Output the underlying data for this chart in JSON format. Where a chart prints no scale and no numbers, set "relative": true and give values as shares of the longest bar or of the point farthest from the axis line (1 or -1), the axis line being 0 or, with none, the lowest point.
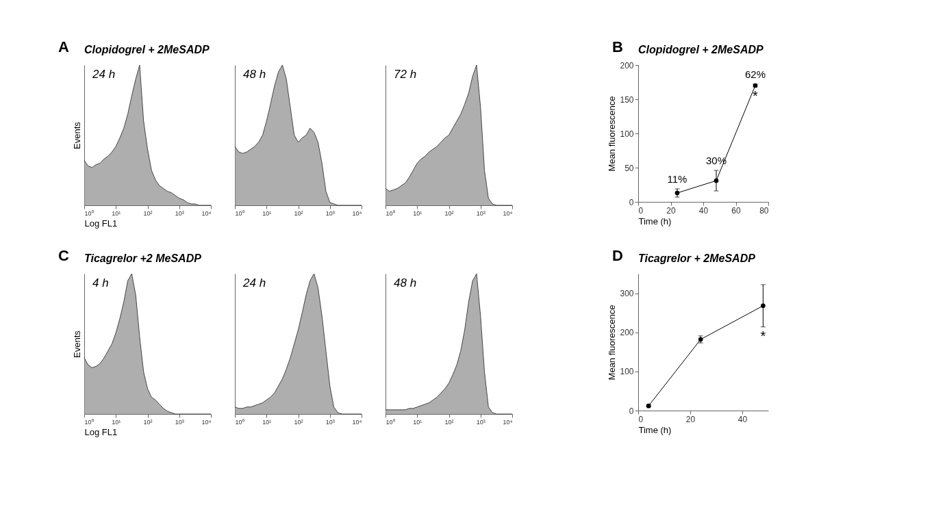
{
  "chart_data": [
    {
      "type": "area",
      "title": "24 h",
      "annotations": [
        "A",
        "Clopidogrel + 2MeSADP"
      ],
      "xlabel": "Log FL1",
      "ylabel": "Events",
      "relative": true,
      "log": "x",
      "xlim": [
        1,
        10000
      ],
      "xticks": [
        {
          "value": 1,
          "label": "10⁰"
        },
        {
          "value": 10,
          "label": "10¹"
        },
        {
          "value": 100,
          "label": "10²"
        },
        {
          "value": 1000,
          "label": "10³"
        },
        {
          "value": 10000,
          "label": "10⁴"
        }
      ],
      "x": [
        1,
        1.33,
        1.78,
        2.37,
        3.16,
        4.22,
        5.62,
        7.5,
        10,
        13.3,
        17.8,
        23.7,
        31.6,
        42.2,
        56.2,
        75,
        100,
        133,
        178,
        237,
        316,
        422,
        562,
        750,
        1000,
        1333,
        1778,
        2371,
        3162,
        4217,
        5623,
        7499,
        10000
      ],
      "series": [
        {
          "color": "#8c8c8c",
          "values": [
            0.32,
            0.28,
            0.27,
            0.29,
            0.3,
            0.33,
            0.35,
            0.38,
            0.42,
            0.48,
            0.55,
            0.65,
            0.78,
            0.9,
            1,
            0.6,
            0.4,
            0.25,
            0.18,
            0.14,
            0.12,
            0.1,
            0.09,
            0.07,
            0.05,
            0.04,
            0.02,
            0.01,
            0.01,
            0,
            0,
            0,
            0
          ]
        }
      ]
    },
    {
      "type": "area",
      "title": "48 h",
      "relative": true,
      "log": "x",
      "xlim": [
        1,
        10000
      ],
      "xticks": [
        {
          "value": 1,
          "label": "10⁰"
        },
        {
          "value": 10,
          "label": "10¹"
        },
        {
          "value": 100,
          "label": "10²"
        },
        {
          "value": 1000,
          "label": "10³"
        },
        {
          "value": 10000,
          "label": "10⁴"
        }
      ],
      "x": [
        1,
        1.33,
        1.78,
        2.37,
        3.16,
        4.22,
        5.62,
        7.5,
        10,
        13.3,
        17.8,
        23.7,
        31.6,
        42.2,
        56.2,
        75,
        100,
        133,
        178,
        237,
        316,
        422,
        562,
        750,
        1000,
        1333,
        1778,
        2371,
        3162,
        4217,
        5623,
        7499,
        10000
      ],
      "series": [
        {
          "color": "#8c8c8c",
          "values": [
            0.42,
            0.38,
            0.37,
            0.38,
            0.4,
            0.42,
            0.45,
            0.5,
            0.6,
            0.72,
            0.85,
            0.95,
            1,
            0.9,
            0.7,
            0.5,
            0.45,
            0.48,
            0.5,
            0.55,
            0.52,
            0.45,
            0.3,
            0.1,
            0.02,
            0.01,
            0,
            0,
            0,
            0,
            0,
            0,
            0
          ]
        }
      ]
    },
    {
      "type": "area",
      "title": "72 h",
      "relative": true,
      "log": "x",
      "xlim": [
        1,
        10000
      ],
      "xticks": [
        {
          "value": 1,
          "label": "10⁰"
        },
        {
          "value": 10,
          "label": "10¹"
        },
        {
          "value": 100,
          "label": "10²"
        },
        {
          "value": 1000,
          "label": "10³"
        },
        {
          "value": 10000,
          "label": "10⁴"
        }
      ],
      "x": [
        1,
        1.33,
        1.78,
        2.37,
        3.16,
        4.22,
        5.62,
        7.5,
        10,
        13.3,
        17.8,
        23.7,
        31.6,
        42.2,
        56.2,
        75,
        100,
        133,
        178,
        237,
        316,
        422,
        562,
        750,
        1000,
        1333,
        1778,
        2371,
        3162,
        4217,
        5623,
        7499,
        10000
      ],
      "series": [
        {
          "color": "#8c8c8c",
          "values": [
            0.12,
            0.1,
            0.11,
            0.12,
            0.14,
            0.16,
            0.2,
            0.25,
            0.3,
            0.33,
            0.35,
            0.38,
            0.4,
            0.42,
            0.45,
            0.48,
            0.5,
            0.55,
            0.6,
            0.65,
            0.72,
            0.8,
            0.92,
            1,
            0.7,
            0.25,
            0.05,
            0.01,
            0,
            0,
            0,
            0,
            0
          ]
        }
      ]
    },
    {
      "type": "line",
      "title": "Clopidogrel + 2MeSADP",
      "xlabel": "Time (h)",
      "ylabel": "Mean fluorescence",
      "x": [
        24,
        48,
        72
      ],
      "xlim": [
        0,
        80
      ],
      "xticks": [
        0,
        20,
        40,
        60,
        80
      ],
      "ylim": [
        0,
        200
      ],
      "yticks": [
        0,
        50,
        100,
        150,
        200
      ],
      "marker": "circle",
      "series": [
        {
          "color": "#000000",
          "values": [
            13,
            31,
            170
          ],
          "errors": [
            6,
            15,
            2
          ]
        }
      ],
      "annotations": [
        "B",
        "*",
        {
          "text": "11%",
          "x": 24,
          "y": 13
        },
        {
          "text": "30%",
          "x": 48,
          "y": 31
        },
        {
          "text": "62%",
          "x": 72,
          "y": 170
        }
      ]
    },
    {
      "type": "area",
      "title": "4 h",
      "annotations": [
        "C",
        "Ticagrelor +2 MeSADP"
      ],
      "xlabel": "Log FL1",
      "ylabel": "Events",
      "relative": true,
      "log": "x",
      "xlim": [
        1,
        10000
      ],
      "xticks": [
        {
          "value": 1,
          "label": "10⁰"
        },
        {
          "value": 10,
          "label": "10¹"
        },
        {
          "value": 100,
          "label": "10²"
        },
        {
          "value": 1000,
          "label": "10³"
        },
        {
          "value": 10000,
          "label": "10⁴"
        }
      ],
      "x": [
        1,
        1.33,
        1.78,
        2.37,
        3.16,
        4.22,
        5.62,
        7.5,
        10,
        13.3,
        17.8,
        23.7,
        31.6,
        42.2,
        56.2,
        75,
        100,
        133,
        178,
        237,
        316,
        422,
        562,
        750,
        1000,
        1333,
        1778,
        2371,
        3162,
        4217,
        5623,
        7499,
        10000
      ],
      "series": [
        {
          "color": "#8c8c8c",
          "values": [
            0.4,
            0.35,
            0.33,
            0.34,
            0.36,
            0.4,
            0.45,
            0.5,
            0.58,
            0.68,
            0.8,
            0.95,
            1,
            0.85,
            0.55,
            0.3,
            0.18,
            0.12,
            0.1,
            0.07,
            0.04,
            0.02,
            0.01,
            0,
            0,
            0,
            0,
            0,
            0,
            0,
            0,
            0,
            0
          ]
        }
      ]
    },
    {
      "type": "area",
      "title": "24 h",
      "relative": true,
      "log": "x",
      "xlim": [
        1,
        10000
      ],
      "xticks": [
        {
          "value": 1,
          "label": "10⁰"
        },
        {
          "value": 10,
          "label": "10¹"
        },
        {
          "value": 100,
          "label": "10²"
        },
        {
          "value": 1000,
          "label": "10³"
        },
        {
          "value": 10000,
          "label": "10⁴"
        }
      ],
      "x": [
        1,
        1.33,
        1.78,
        2.37,
        3.16,
        4.22,
        5.62,
        7.5,
        10,
        13.3,
        17.8,
        23.7,
        31.6,
        42.2,
        56.2,
        75,
        100,
        133,
        178,
        237,
        316,
        422,
        562,
        750,
        1000,
        1333,
        1778,
        2371,
        3162,
        4217,
        5623,
        7499,
        10000
      ],
      "series": [
        {
          "color": "#8c8c8c",
          "values": [
            0.05,
            0.04,
            0.04,
            0.05,
            0.05,
            0.06,
            0.07,
            0.08,
            0.1,
            0.12,
            0.15,
            0.2,
            0.25,
            0.32,
            0.4,
            0.5,
            0.6,
            0.72,
            0.85,
            0.95,
            1,
            0.9,
            0.7,
            0.45,
            0.2,
            0.05,
            0.01,
            0,
            0,
            0,
            0,
            0,
            0
          ]
        }
      ]
    },
    {
      "type": "area",
      "title": "48 h",
      "relative": true,
      "log": "x",
      "xlim": [
        1,
        10000
      ],
      "xticks": [
        {
          "value": 1,
          "label": "10⁰"
        },
        {
          "value": 10,
          "label": "10¹"
        },
        {
          "value": 100,
          "label": "10²"
        },
        {
          "value": 1000,
          "label": "10³"
        },
        {
          "value": 10000,
          "label": "10⁴"
        }
      ],
      "x": [
        1,
        1.33,
        1.78,
        2.37,
        3.16,
        4.22,
        5.62,
        7.5,
        10,
        13.3,
        17.8,
        23.7,
        31.6,
        42.2,
        56.2,
        75,
        100,
        133,
        178,
        237,
        316,
        422,
        562,
        750,
        1000,
        1333,
        1778,
        2371,
        3162,
        4217,
        5623,
        7499,
        10000
      ],
      "series": [
        {
          "color": "#8c8c8c",
          "values": [
            0.03,
            0.03,
            0.03,
            0.03,
            0.03,
            0.03,
            0.04,
            0.04,
            0.05,
            0.06,
            0.07,
            0.08,
            0.1,
            0.12,
            0.15,
            0.18,
            0.22,
            0.28,
            0.35,
            0.45,
            0.6,
            0.8,
            0.95,
            1,
            0.7,
            0.3,
            0.05,
            0.01,
            0,
            0,
            0,
            0,
            0
          ]
        }
      ]
    },
    {
      "type": "line",
      "title": "Ticagrelor + 2MeSADP",
      "xlabel": "Time (h)",
      "ylabel": "Mean fluorescence",
      "x": [
        4,
        24,
        48
      ],
      "xlim": [
        0,
        50
      ],
      "xticks": [
        0,
        20,
        40
      ],
      "ylim": [
        0,
        350
      ],
      "yticks": [
        0,
        100,
        200,
        300
      ],
      "marker": "circle",
      "series": [
        {
          "color": "#000000",
          "values": [
            12,
            182,
            268
          ],
          "errors": [
            3,
            9,
            54
          ]
        }
      ],
      "annotations": [
        "D",
        "*"
      ]
    }
  ]
}
